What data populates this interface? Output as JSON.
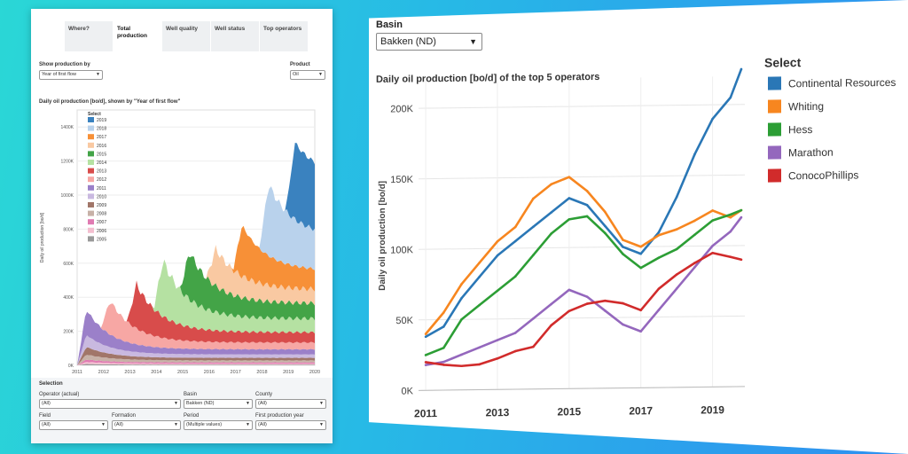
{
  "left_panel": {
    "tabs": [
      "Where?",
      "Total production",
      "Well quality",
      "Well status",
      "Top operators"
    ],
    "active_tab": 1,
    "show_production_label": "Show production by",
    "show_production_value": "Year of first flow",
    "product_label": "Product",
    "product_value": "Oil",
    "selection_label": "Selection",
    "filters": [
      {
        "label": "Operator (actual)",
        "value": "(All)"
      },
      {
        "label": "Basin",
        "value": "Bakken (ND)"
      },
      {
        "label": "County",
        "value": "(All)"
      },
      {
        "label": "Field",
        "value": "(All)"
      },
      {
        "label": "Formation",
        "value": "(All)"
      },
      {
        "label": "Period",
        "value": "(Multiple values)"
      },
      {
        "label": "First production year",
        "value": "(All)"
      }
    ]
  },
  "right_panel": {
    "basin_label": "Basin",
    "basin_value": "Bakken (ND)"
  },
  "chart_data": [
    {
      "type": "area",
      "stacked": true,
      "title": "Daily oil production [bo/d], shown by \"Year of first flow\"",
      "ylabel": "Daily oil production [bo/d]",
      "xlabel": "",
      "xlim": [
        2011,
        2020
      ],
      "ylim": [
        0,
        1500000
      ],
      "x_ticks": [
        "2011",
        "2012",
        "2013",
        "2014",
        "2015",
        "2016",
        "2017",
        "2018",
        "2019",
        "2020"
      ],
      "y_ticks": [
        {
          "v": 0,
          "label": "0K"
        },
        {
          "v": 200000,
          "label": "200K"
        },
        {
          "v": 400000,
          "label": "400K"
        },
        {
          "v": 600000,
          "label": "600K"
        },
        {
          "v": 800000,
          "label": "800K"
        },
        {
          "v": 1000000,
          "label": "1000K"
        },
        {
          "v": 1200000,
          "label": "1200K"
        },
        {
          "v": 1400000,
          "label": "1400K"
        }
      ],
      "legend_title": "Select",
      "series": [
        {
          "name": "2005",
          "color": "#999999",
          "start": 2011.0,
          "peak": 8000,
          "end": 4000
        },
        {
          "name": "2006",
          "color": "#f4bfd0",
          "start": 2011.0,
          "peak": 12000,
          "end": 6000
        },
        {
          "name": "2007",
          "color": "#e07bb2",
          "start": 2011.0,
          "peak": 14000,
          "end": 7000
        },
        {
          "name": "2008",
          "color": "#c7b1a7",
          "start": 2011.0,
          "peak": 30000,
          "end": 12000
        },
        {
          "name": "2009",
          "color": "#a17669",
          "start": 2011.0,
          "peak": 45000,
          "end": 15000
        },
        {
          "name": "2010",
          "color": "#c9b9e0",
          "start": 2011.0,
          "peak": 70000,
          "end": 20000
        },
        {
          "name": "2011",
          "color": "#9b80c9",
          "start": 2011.0,
          "peak": 150000,
          "end": 30000
        },
        {
          "name": "2012",
          "color": "#f7a7a4",
          "start": 2011.9,
          "peak": 200000,
          "end": 40000
        },
        {
          "name": "2013",
          "color": "#d84c4b",
          "start": 2012.9,
          "peak": 260000,
          "end": 60000
        },
        {
          "name": "2014",
          "color": "#b5e1a2",
          "start": 2013.9,
          "peak": 330000,
          "end": 80000
        },
        {
          "name": "2015",
          "color": "#43a447",
          "start": 2014.9,
          "peak": 280000,
          "end": 90000
        },
        {
          "name": "2016",
          "color": "#f9c9a2",
          "start": 2015.9,
          "peak": 220000,
          "end": 80000
        },
        {
          "name": "2017",
          "color": "#f79037",
          "start": 2016.9,
          "peak": 300000,
          "end": 110000
        },
        {
          "name": "2018",
          "color": "#b9d2ec",
          "start": 2017.9,
          "peak": 420000,
          "end": 200000
        },
        {
          "name": "2019",
          "color": "#3a82bf",
          "start": 2018.9,
          "peak": 450000,
          "end": 350000
        }
      ]
    },
    {
      "type": "line",
      "title": "Daily oil production [bo/d] of the top 5 operators",
      "ylabel": "Daily oil production [bo/d]",
      "xlabel": "",
      "xlim": [
        2010.8,
        2019.9
      ],
      "ylim": [
        0,
        220000
      ],
      "x_ticks": [
        "2011",
        "2013",
        "2015",
        "2017",
        "2019"
      ],
      "y_ticks": [
        {
          "v": 0,
          "label": "0K"
        },
        {
          "v": 50000,
          "label": "50K"
        },
        {
          "v": 100000,
          "label": "100K"
        },
        {
          "v": 150000,
          "label": "150K"
        },
        {
          "v": 200000,
          "label": "200K"
        }
      ],
      "legend_title": "Select",
      "x": [
        2011.0,
        2011.5,
        2012.0,
        2012.5,
        2013.0,
        2013.5,
        2014.0,
        2014.5,
        2015.0,
        2015.5,
        2016.0,
        2016.5,
        2017.0,
        2017.5,
        2018.0,
        2018.5,
        2019.0,
        2019.5,
        2019.8
      ],
      "series": [
        {
          "name": "Continental Resources",
          "color": "#2a77b6",
          "values": [
            38000,
            45000,
            65000,
            80000,
            95000,
            105000,
            115000,
            125000,
            135000,
            130000,
            115000,
            100000,
            95000,
            110000,
            135000,
            165000,
            190000,
            205000,
            225000
          ]
        },
        {
          "name": "Whiting",
          "color": "#f7861f",
          "values": [
            40000,
            55000,
            75000,
            90000,
            105000,
            115000,
            135000,
            145000,
            150000,
            140000,
            125000,
            105000,
            100000,
            108000,
            112000,
            118000,
            125000,
            120000,
            125000
          ]
        },
        {
          "name": "Hess",
          "color": "#2c9e35",
          "values": [
            25000,
            30000,
            50000,
            60000,
            70000,
            80000,
            95000,
            110000,
            120000,
            122000,
            110000,
            95000,
            85000,
            92000,
            98000,
            108000,
            118000,
            122000,
            125000
          ]
        },
        {
          "name": "Marathon",
          "color": "#9467bd",
          "values": [
            18000,
            20000,
            25000,
            30000,
            35000,
            40000,
            50000,
            60000,
            70000,
            65000,
            55000,
            45000,
            40000,
            55000,
            70000,
            85000,
            100000,
            110000,
            120000
          ]
        },
        {
          "name": "ConocoPhillips",
          "color": "#d12b2b",
          "values": [
            20000,
            18000,
            17000,
            18000,
            22000,
            27000,
            30000,
            45000,
            55000,
            60000,
            62000,
            60000,
            55000,
            70000,
            80000,
            88000,
            95000,
            92000,
            90000
          ]
        }
      ]
    }
  ]
}
